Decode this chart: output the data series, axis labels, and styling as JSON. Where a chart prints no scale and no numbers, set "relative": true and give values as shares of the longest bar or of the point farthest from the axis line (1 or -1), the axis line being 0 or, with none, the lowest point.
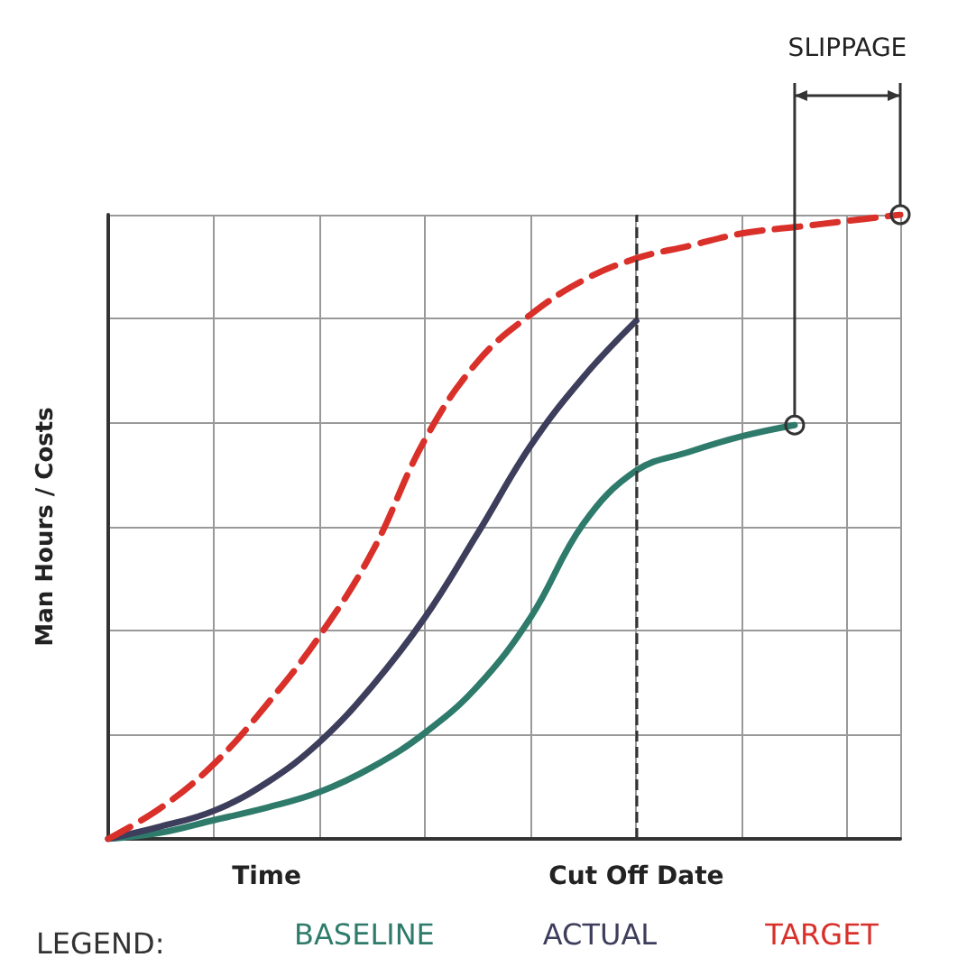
{
  "chart_data": {
    "type": "line",
    "relative": true,
    "ylabel": "Man Hours / Costs",
    "legend_title": "LEGEND:",
    "legend": "bottom",
    "grid": true,
    "annotations": [
      "SLIPPAGE"
    ],
    "categories": [
      null,
      null,
      null,
      "Time",
      null,
      null,
      null,
      null,
      null,
      null,
      "Cut Off Date",
      null,
      null,
      null,
      null,
      null
    ],
    "ref_lines": [
      {
        "axis": "x",
        "value": "Cut Off Date",
        "line_style": "dashed",
        "color": "#333333"
      }
    ],
    "series": [
      {
        "name": "BASELINE",
        "color": "#2e7b6b",
        "line_style": "solid",
        "values": [
          0,
          0.01,
          0.03,
          0.05,
          0.075,
          0.115,
          0.17,
          0.245,
          0.355,
          0.505,
          0.59,
          0.62,
          0.645,
          0.663,
          null,
          null
        ]
      },
      {
        "name": "ACTUAL",
        "color": "#3d3d5c",
        "line_style": "solid",
        "values": [
          0,
          0.02,
          0.045,
          0.09,
          0.155,
          0.245,
          0.355,
          0.49,
          0.63,
          0.74,
          0.83,
          null,
          null,
          null,
          null,
          null
        ]
      },
      {
        "name": "TARGET",
        "color": "#d9302a",
        "line_style": "dashed",
        "values": [
          0,
          0.05,
          0.12,
          0.215,
          0.325,
          0.46,
          0.64,
          0.765,
          0.84,
          0.895,
          0.93,
          0.95,
          0.97,
          0.98,
          0.99,
          1
        ]
      }
    ]
  }
}
